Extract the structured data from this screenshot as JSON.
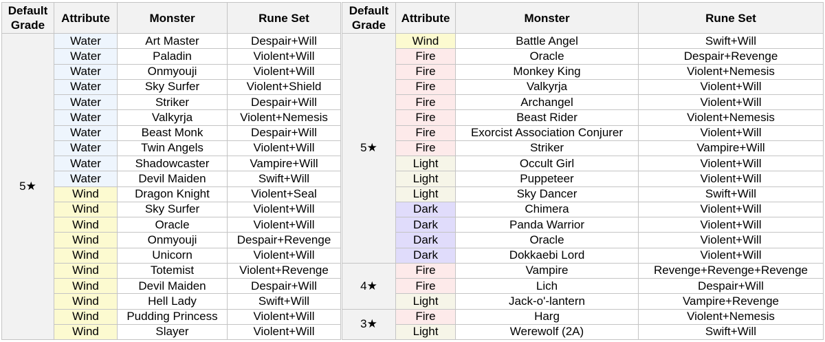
{
  "headers": {
    "grade": "Default\nGrade",
    "attribute": "Attribute",
    "monster": "Monster",
    "rune": "Rune Set"
  },
  "colors": {
    "header": "#f2f2f2",
    "Water": "#eef5fd",
    "Wind": "#fcfad0",
    "Fire": "#fdeaea",
    "Light": "#f6f5e8",
    "Dark": "#e0dcfb"
  },
  "tables": [
    {
      "groups": [
        {
          "grade": "5★",
          "rows": [
            [
              "Water",
              "Art Master",
              "Despair+Will"
            ],
            [
              "Water",
              "Paladin",
              "Violent+Will"
            ],
            [
              "Water",
              "Onmyouji",
              "Violent+Will"
            ],
            [
              "Water",
              "Sky Surfer",
              "Violent+Shield"
            ],
            [
              "Water",
              "Striker",
              "Despair+Will"
            ],
            [
              "Water",
              "Valkyrja",
              "Violent+Nemesis"
            ],
            [
              "Water",
              "Beast Monk",
              "Despair+Will"
            ],
            [
              "Water",
              "Twin Angels",
              "Violent+Will"
            ],
            [
              "Water",
              "Shadowcaster",
              "Vampire+Will"
            ],
            [
              "Water",
              "Devil Maiden",
              "Swift+Will"
            ],
            [
              "Wind",
              "Dragon Knight",
              "Violent+Seal"
            ],
            [
              "Wind",
              "Sky Surfer",
              "Violent+Will"
            ],
            [
              "Wind",
              "Oracle",
              "Violent+Will"
            ],
            [
              "Wind",
              "Onmyouji",
              "Despair+Revenge"
            ],
            [
              "Wind",
              "Unicorn",
              "Violent+Will"
            ],
            [
              "Wind",
              "Totemist",
              "Violent+Revenge"
            ],
            [
              "Wind",
              "Devil Maiden",
              "Despair+Will"
            ],
            [
              "Wind",
              "Hell Lady",
              "Swift+Will"
            ],
            [
              "Wind",
              "Pudding Princess",
              "Violent+Will"
            ],
            [
              "Wind",
              "Slayer",
              "Violent+Will"
            ]
          ]
        }
      ]
    },
    {
      "groups": [
        {
          "grade": "5★",
          "rows": [
            [
              "Wind",
              "Battle Angel",
              "Swift+Will"
            ],
            [
              "Fire",
              "Oracle",
              "Despair+Revenge"
            ],
            [
              "Fire",
              "Monkey King",
              "Violent+Nemesis"
            ],
            [
              "Fire",
              "Valkyrja",
              "Violent+Will"
            ],
            [
              "Fire",
              "Archangel",
              "Violent+Will"
            ],
            [
              "Fire",
              "Beast Rider",
              "Violent+Nemesis"
            ],
            [
              "Fire",
              "Exorcist Association Conjurer",
              "Violent+Will"
            ],
            [
              "Fire",
              "Striker",
              "Vampire+Will"
            ],
            [
              "Light",
              "Occult Girl",
              "Violent+Will"
            ],
            [
              "Light",
              "Puppeteer",
              "Violent+Will"
            ],
            [
              "Light",
              "Sky Dancer",
              "Swift+Will"
            ],
            [
              "Dark",
              "Chimera",
              "Violent+Will"
            ],
            [
              "Dark",
              "Panda Warrior",
              "Violent+Will"
            ],
            [
              "Dark",
              "Oracle",
              "Violent+Will"
            ],
            [
              "Dark",
              "Dokkaebi Lord",
              "Violent+Will"
            ]
          ]
        },
        {
          "grade": "4★",
          "rows": [
            [
              "Fire",
              "Vampire",
              "Revenge+Revenge+Revenge"
            ],
            [
              "Fire",
              "Lich",
              "Despair+Will"
            ],
            [
              "Light",
              "Jack-o'-lantern",
              "Vampire+Revenge"
            ]
          ]
        },
        {
          "grade": "3★",
          "rows": [
            [
              "Fire",
              "Harg",
              "Violent+Nemesis"
            ],
            [
              "Light",
              "Werewolf (2A)",
              "Swift+Will"
            ]
          ]
        }
      ]
    }
  ]
}
